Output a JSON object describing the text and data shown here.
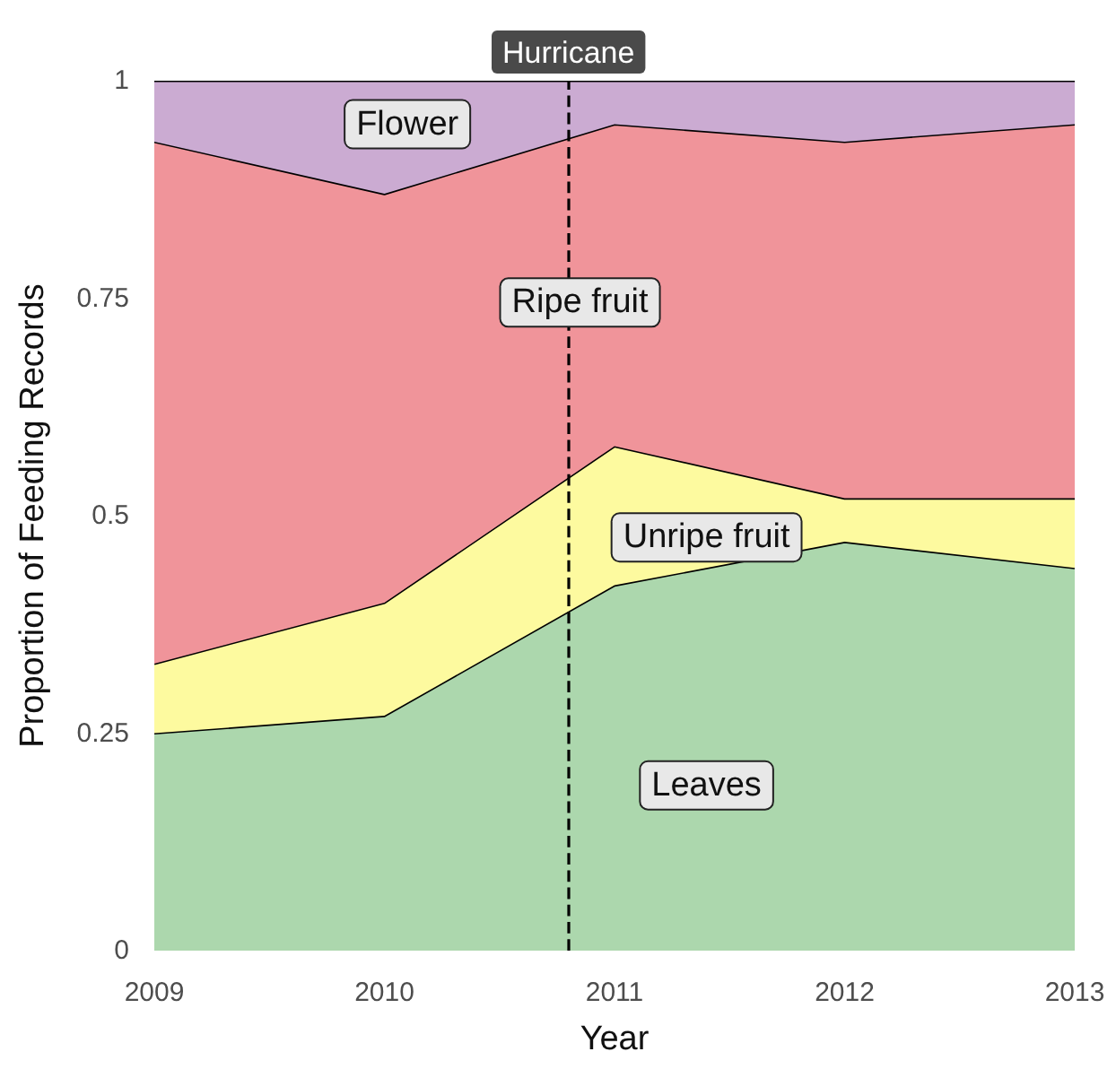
{
  "chart_data": {
    "type": "area",
    "stacked": true,
    "xlabel": "Year",
    "ylabel": "Proportion of Feeding Records",
    "x": [
      2009,
      2010,
      2011,
      2012,
      2013
    ],
    "series": [
      {
        "name": "Leaves",
        "color": "#acd7ad",
        "values": [
          0.25,
          0.27,
          0.42,
          0.47,
          0.44
        ]
      },
      {
        "name": "Unripe fruit",
        "color": "#fdfa9f",
        "values": [
          0.08,
          0.13,
          0.16,
          0.05,
          0.08
        ]
      },
      {
        "name": "Ripe fruit",
        "color": "#f0949a",
        "values": [
          0.6,
          0.47,
          0.37,
          0.41,
          0.43
        ]
      },
      {
        "name": "Flower",
        "color": "#cbabd2",
        "values": [
          0.07,
          0.13,
          0.05,
          0.07,
          0.05
        ]
      }
    ],
    "xlim": [
      2009,
      2013
    ],
    "xticks": [
      2009,
      2010,
      2011,
      2012,
      2013
    ],
    "ylim": [
      0,
      1
    ],
    "yticks": [
      0,
      0.25,
      0.5,
      0.75,
      1
    ],
    "ref_lines": [
      {
        "axis": "x",
        "value": 2010.8,
        "label": "Hurricane",
        "line_style": "dashed",
        "color": "#000000"
      }
    ],
    "grid": false,
    "legend": false
  }
}
